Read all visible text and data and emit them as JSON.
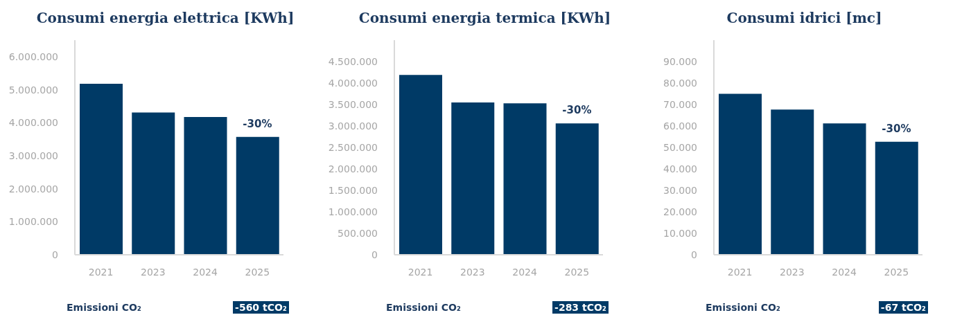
{
  "chart_data": [
    {
      "type": "bar",
      "title": "Consumi energia elettrica [KWh]",
      "categories": [
        "2021",
        "2023",
        "2024",
        "2025"
      ],
      "values": [
        5180000,
        4310000,
        4170000,
        3570000
      ],
      "color": "#003a66",
      "ylim": [
        0,
        6500000
      ],
      "yticks": [
        {
          "value": 0,
          "label": "0"
        },
        {
          "value": 1000000,
          "label": "1.000.000"
        },
        {
          "value": 2000000,
          "label": "2.000.000"
        },
        {
          "value": 3000000,
          "label": "3.000.000"
        },
        {
          "value": 4000000,
          "label": "4.000.000"
        },
        {
          "value": 5000000,
          "label": "5.000.000"
        },
        {
          "value": 6000000,
          "label": "6.000.000"
        }
      ],
      "grid": false,
      "annotations": [
        {
          "text": "-30%",
          "x": "2025",
          "y": 3570000
        },
        "Emissioni CO₂",
        "-560 tCO₂"
      ]
    },
    {
      "type": "bar",
      "title": "Consumi energia termica [KWh]",
      "categories": [
        "2021",
        "2023",
        "2024",
        "2025"
      ],
      "values": [
        4190000,
        3550000,
        3530000,
        3060000
      ],
      "color": "#003a66",
      "ylim": [
        0,
        5000000
      ],
      "yticks": [
        {
          "value": 0,
          "label": "0"
        },
        {
          "value": 500000,
          "label": "500.000"
        },
        {
          "value": 1000000,
          "label": "1.000.000"
        },
        {
          "value": 1500000,
          "label": "1.500.000"
        },
        {
          "value": 2000000,
          "label": "2.000.000"
        },
        {
          "value": 2500000,
          "label": "2.500.000"
        },
        {
          "value": 3000000,
          "label": "3.000.000"
        },
        {
          "value": 3500000,
          "label": "3.500.000"
        },
        {
          "value": 4000000,
          "label": "4.000.000"
        },
        {
          "value": 4500000,
          "label": "4.500.000"
        }
      ],
      "grid": false,
      "annotations": [
        {
          "text": "-30%",
          "x": "2025",
          "y": 3060000
        },
        "Emissioni CO₂",
        "-283 tCO₂"
      ]
    },
    {
      "type": "bar",
      "title": "Consumi idrici [mc]",
      "categories": [
        "2021",
        "2023",
        "2024",
        "2025"
      ],
      "values": [
        75000,
        67700,
        61200,
        52700
      ],
      "color": "#003a66",
      "ylim": [
        0,
        100000
      ],
      "yticks": [
        {
          "value": 0,
          "label": "0"
        },
        {
          "value": 10000,
          "label": "10.000"
        },
        {
          "value": 20000,
          "label": "20.000"
        },
        {
          "value": 30000,
          "label": "30.000"
        },
        {
          "value": 40000,
          "label": "40.000"
        },
        {
          "value": 50000,
          "label": "50.000"
        },
        {
          "value": 60000,
          "label": "60.000"
        },
        {
          "value": 70000,
          "label": "70.000"
        },
        {
          "value": 80000,
          "label": "80.000"
        },
        {
          "value": 90000,
          "label": "90.000"
        }
      ],
      "grid": false,
      "annotations": [
        {
          "text": "-30%",
          "x": "2025",
          "y": 52700
        },
        "Emissioni CO₂",
        "-67 tCO₂"
      ]
    }
  ]
}
